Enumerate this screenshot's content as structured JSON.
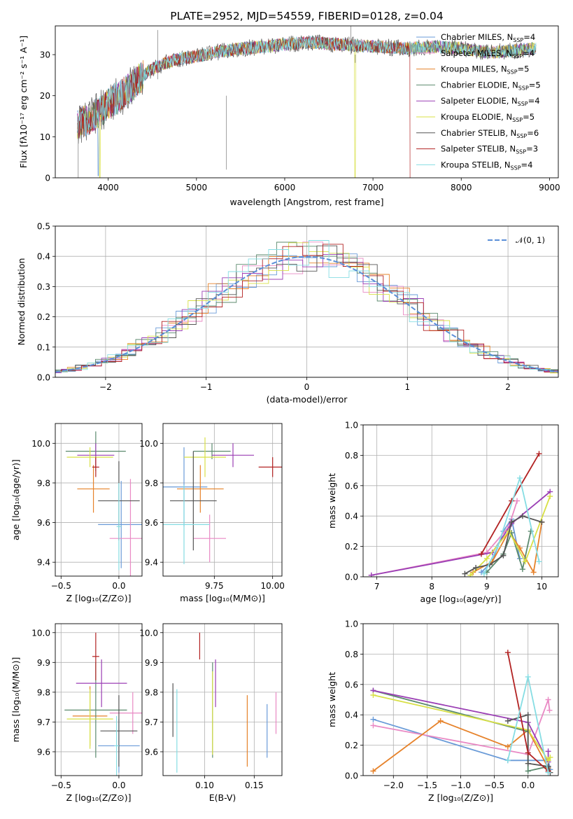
{
  "chart_data": [
    {
      "id": "spectrum",
      "type": "line",
      "title": "PLATE=2952, MJD=54559, FIBERID=0128, z=0.04",
      "xlabel": "wavelength [Angstrom, rest frame]",
      "ylabel": "Flux [fλ10⁻¹⁷ erg cm⁻² s⁻¹ A⁻¹]",
      "xlim": [
        3400,
        9100
      ],
      "ylim": [
        0,
        37
      ],
      "xticks": [
        "4000",
        "5000",
        "6000",
        "7000",
        "8000",
        "9000"
      ],
      "yticks": [
        "0",
        "10",
        "20",
        "30"
      ],
      "continuum": {
        "x": [
          3650,
          3700,
          3800,
          3900,
          4000,
          4100,
          4200,
          4300,
          4400,
          4500,
          4600,
          4800,
          5000,
          5200,
          5500,
          5800,
          6000,
          6300,
          6600,
          7000,
          7400,
          7700,
          8000,
          8300,
          8600,
          8850
        ],
        "y": [
          13,
          13.5,
          14.5,
          16,
          18,
          19.5,
          21,
          23,
          25,
          26.5,
          27.5,
          29,
          29.5,
          30.5,
          31.5,
          32,
          32.5,
          33,
          32.5,
          32,
          31.5,
          32,
          31.5,
          30.5,
          31,
          31.5
        ]
      },
      "legend": [
        {
          "name": "Chabrier MILES, N",
          "sub": "SSP",
          "tail": "=4",
          "color": "#6a9bd8"
        },
        {
          "name": "Salpeter MILES, N",
          "sub": "SSP",
          "tail": "=4",
          "color": "#e989c4"
        },
        {
          "name": "Kroupa MILES, N",
          "sub": "SSP",
          "tail": "=5",
          "color": "#e6822a"
        },
        {
          "name": "Chabrier ELODIE, N",
          "sub": "SSP",
          "tail": "=5",
          "color": "#5b8a6e"
        },
        {
          "name": "Salpeter ELODIE, N",
          "sub": "SSP",
          "tail": "=4",
          "color": "#9b3fb5"
        },
        {
          "name": "Kroupa ELODIE, N",
          "sub": "SSP",
          "tail": "=5",
          "color": "#d8e046"
        },
        {
          "name": "Chabrier STELIB, N",
          "sub": "SSP",
          "tail": "=6",
          "color": "#555555"
        },
        {
          "name": "Salpeter STELIB, N",
          "sub": "SSP",
          "tail": "=3",
          "color": "#b22222"
        },
        {
          "name": "Kroupa STELIB, N",
          "sub": "SSP",
          "tail": "=4",
          "color": "#86dde3"
        }
      ]
    },
    {
      "id": "residuals",
      "type": "line",
      "xlabel": "(data-model)/error",
      "ylabel": "Normed distribution",
      "xlim": [
        -2.5,
        2.5
      ],
      "ylim": [
        0,
        0.5
      ],
      "xticks": [
        "−2",
        "−1",
        "0",
        "1",
        "2"
      ],
      "yticks": [
        "0.0",
        "0.1",
        "0.2",
        "0.3",
        "0.4",
        "0.5"
      ],
      "legend": {
        "label": "𝒩(0, 1)",
        "color": "#5b8fd8"
      },
      "reference_curve": "gaussian mean 0 sigma 1"
    },
    {
      "id": "age-vs-Z",
      "type": "scatter",
      "xlabel": "Z [log₁₀(Z/Z⊙)]",
      "ylabel": "age  [log₁₀(age/yr)]",
      "xlim": [
        -0.55,
        0.2
      ],
      "ylim": [
        9.33,
        10.1
      ],
      "xticks": [
        "−0.5",
        "0.0"
      ],
      "yticks": [
        "9.4",
        "9.6",
        "9.8",
        "10.0"
      ],
      "points": [
        {
          "x": 0.02,
          "xerr": 0.2,
          "y": 9.59,
          "yerr": 0.22,
          "color": "#6a9bd8"
        },
        {
          "x": 0.1,
          "xerr": 0.18,
          "y": 9.52,
          "yerr": 0.3,
          "color": "#e989c4"
        },
        {
          "x": -0.22,
          "xerr": 0.14,
          "y": 9.77,
          "yerr": 0.12,
          "color": "#e6822a"
        },
        {
          "x": -0.2,
          "xerr": 0.26,
          "y": 9.96,
          "yerr": 0.1,
          "color": "#5b8a6e"
        },
        {
          "x": -0.2,
          "xerr": 0.16,
          "y": 9.94,
          "yerr": 0.06,
          "color": "#9b3fb5"
        },
        {
          "x": -0.25,
          "xerr": 0.2,
          "y": 9.93,
          "yerr": 0.05,
          "color": "#d8e046"
        },
        {
          "x": 0.0,
          "xerr": 0.18,
          "y": 9.71,
          "yerr": 0.2,
          "color": "#555555"
        },
        {
          "x": -0.2,
          "xerr": 0.03,
          "y": 9.88,
          "yerr": 0.05,
          "color": "#b22222"
        },
        {
          "x": 0.0,
          "xerr": 0.02,
          "y": 9.58,
          "yerr": 0.22,
          "color": "#86dde3"
        }
      ]
    },
    {
      "id": "age-vs-mass",
      "type": "scatter",
      "xlabel": "mass [log₁₀(M/M⊙)]",
      "ylabel": "",
      "xlim": [
        9.53,
        10.04
      ],
      "ylim": [
        9.33,
        10.1
      ],
      "xticks": [
        "9.75",
        "10.00"
      ],
      "yticks": [
        "9.4",
        "9.6",
        "9.8",
        "10.0"
      ],
      "points": [
        {
          "x": 9.62,
          "xerr": 0.1,
          "y": 9.78,
          "yerr": 0.2,
          "color": "#6a9bd8"
        },
        {
          "x": 9.73,
          "xerr": 0.07,
          "y": 9.52,
          "yerr": 0.12,
          "color": "#e989c4"
        },
        {
          "x": 9.69,
          "xerr": 0.1,
          "y": 9.77,
          "yerr": 0.12,
          "color": "#e6822a"
        },
        {
          "x": 9.74,
          "xerr": 0.08,
          "y": 9.96,
          "yerr": 0.04,
          "color": "#5b8a6e"
        },
        {
          "x": 9.83,
          "xerr": 0.09,
          "y": 9.94,
          "yerr": 0.06,
          "color": "#9b3fb5"
        },
        {
          "x": 9.71,
          "xerr": 0.09,
          "y": 9.93,
          "yerr": 0.1,
          "color": "#d8e046"
        },
        {
          "x": 9.66,
          "xerr": 0.1,
          "y": 9.71,
          "yerr": 0.25,
          "color": "#555555"
        },
        {
          "x": 10.0,
          "xerr": 0.06,
          "y": 9.88,
          "yerr": 0.05,
          "color": "#b22222"
        },
        {
          "x": 9.62,
          "xerr": 0.11,
          "y": 9.59,
          "yerr": 0.2,
          "color": "#86dde3"
        }
      ]
    },
    {
      "id": "weight-vs-age",
      "type": "line",
      "xlabel": "age  [log₁₀(age/yr)]",
      "ylabel": "mass weight",
      "xlim": [
        6.75,
        10.3
      ],
      "ylim": [
        0,
        1
      ],
      "xticks": [
        "7",
        "8",
        "9",
        "10"
      ],
      "yticks": [
        "0.0",
        "0.2",
        "0.4",
        "0.6",
        "0.8",
        "1.0"
      ],
      "series": [
        {
          "color": "#6a9bd8",
          "x": [
            8.9,
            9.1,
            9.3,
            9.45,
            9.6
          ],
          "y": [
            0.03,
            0.1,
            0.3,
            0.38,
            0.12
          ]
        },
        {
          "color": "#e989c4",
          "x": [
            6.9,
            9.0,
            9.4,
            9.55
          ],
          "y": [
            0.01,
            0.16,
            0.33,
            0.5
          ]
        },
        {
          "color": "#e6822a",
          "x": [
            8.75,
            9.1,
            9.4,
            9.6,
            9.85,
            10.0
          ],
          "y": [
            0.03,
            0.1,
            0.3,
            0.19,
            0.03,
            0.36
          ]
        },
        {
          "color": "#5b8a6e",
          "x": [
            9.0,
            9.3,
            9.45,
            9.65,
            9.8
          ],
          "y": [
            0.03,
            0.15,
            0.29,
            0.05,
            0.3
          ]
        },
        {
          "color": "#9b3fb5",
          "x": [
            6.9,
            9.1,
            9.45,
            10.15
          ],
          "y": [
            0.01,
            0.16,
            0.35,
            0.56
          ]
        },
        {
          "color": "#d8e046",
          "x": [
            8.7,
            9.0,
            9.4,
            9.7,
            10.15
          ],
          "y": [
            0.01,
            0.12,
            0.3,
            0.1,
            0.53
          ]
        },
        {
          "color": "#555555",
          "x": [
            8.6,
            8.8,
            9.05,
            9.3,
            9.45,
            9.65,
            10.0
          ],
          "y": [
            0.02,
            0.06,
            0.08,
            0.14,
            0.36,
            0.4,
            0.36
          ]
        },
        {
          "color": "#b22222",
          "x": [
            8.9,
            9.45,
            9.95
          ],
          "y": [
            0.15,
            0.5,
            0.81
          ]
        },
        {
          "color": "#86dde3",
          "x": [
            8.95,
            9.2,
            9.6,
            9.95
          ],
          "y": [
            0.02,
            0.2,
            0.65,
            0.1
          ]
        }
      ]
    },
    {
      "id": "mass-vs-Z",
      "type": "scatter",
      "xlabel": "Z [log₁₀(Z/Z⊙)]",
      "ylabel": "mass [log₁₀(M/M⊙)]",
      "xlim": [
        -0.55,
        0.2
      ],
      "ylim": [
        9.52,
        10.03
      ],
      "xticks": [
        "−0.5",
        "0.0"
      ],
      "yticks": [
        "9.6",
        "9.7",
        "9.8",
        "9.9",
        "10.0"
      ],
      "points": [
        {
          "x": 0.0,
          "xerr": 0.18,
          "y": 9.62,
          "yerr": 0.09,
          "color": "#6a9bd8"
        },
        {
          "x": 0.12,
          "xerr": 0.2,
          "y": 9.73,
          "yerr": 0.07,
          "color": "#e989c4"
        },
        {
          "x": -0.25,
          "xerr": 0.15,
          "y": 9.72,
          "yerr": 0.1,
          "color": "#e6822a"
        },
        {
          "x": -0.2,
          "xerr": 0.27,
          "y": 9.74,
          "yerr": 0.16,
          "color": "#5b8a6e"
        },
        {
          "x": -0.15,
          "xerr": 0.22,
          "y": 9.83,
          "yerr": 0.08,
          "color": "#9b3fb5"
        },
        {
          "x": -0.25,
          "xerr": 0.2,
          "y": 9.71,
          "yerr": 0.1,
          "color": "#d8e046"
        },
        {
          "x": 0.0,
          "xerr": 0.16,
          "y": 9.67,
          "yerr": 0.12,
          "color": "#555555"
        },
        {
          "x": -0.2,
          "xerr": 0.03,
          "y": 9.92,
          "yerr": 0.08,
          "color": "#b22222"
        },
        {
          "x": -0.02,
          "xerr": 0.02,
          "y": 9.62,
          "yerr": 0.1,
          "color": "#86dde3"
        }
      ]
    },
    {
      "id": "mass-vs-ebv",
      "type": "scatter",
      "xlabel": "E(B-V)",
      "ylabel": "",
      "xlim": [
        0.058,
        0.178
      ],
      "ylim": [
        9.52,
        10.03
      ],
      "xticks": [
        "0.10",
        "0.15"
      ],
      "yticks": [
        "9.6",
        "9.7",
        "9.8",
        "9.9",
        "10.0"
      ],
      "points": [
        {
          "x": 0.163,
          "y": 9.67,
          "yerr": 0.09,
          "color": "#6a9bd8"
        },
        {
          "x": 0.172,
          "y": 9.73,
          "yerr": 0.07,
          "color": "#e989c4"
        },
        {
          "x": 0.143,
          "y": 9.67,
          "yerr": 0.12,
          "color": "#e6822a"
        },
        {
          "x": 0.108,
          "y": 9.74,
          "yerr": 0.16,
          "color": "#5b8a6e"
        },
        {
          "x": 0.111,
          "y": 9.83,
          "yerr": 0.08,
          "color": "#9b3fb5"
        },
        {
          "x": 0.108,
          "y": 9.73,
          "yerr": 0.14,
          "color": "#d8e046"
        },
        {
          "x": 0.068,
          "y": 9.74,
          "yerr": 0.09,
          "color": "#555555"
        },
        {
          "x": 0.095,
          "y": 9.955,
          "yerr": 0.045,
          "color": "#b22222"
        },
        {
          "x": 0.072,
          "y": 9.67,
          "yerr": 0.14,
          "color": "#86dde3"
        }
      ]
    },
    {
      "id": "weight-vs-Z",
      "type": "line",
      "xlabel": "Z [log₁₀(Z/Z⊙)]",
      "ylabel": "mass weight",
      "xlim": [
        -2.45,
        0.45
      ],
      "ylim": [
        0,
        1
      ],
      "xticks": [
        "−2.0",
        "−1.5",
        "−1.0",
        "−0.5",
        "0.0"
      ],
      "yticks": [
        "0.0",
        "0.2",
        "0.4",
        "0.6",
        "0.8",
        "1.0"
      ],
      "series": [
        {
          "color": "#6a9bd8",
          "x": [
            -2.3,
            -0.3,
            0.0,
            0.3,
            0.33
          ],
          "y": [
            0.37,
            0.1,
            0.1,
            0.1,
            0.04
          ]
        },
        {
          "color": "#e989c4",
          "x": [
            -2.3,
            0.0,
            0.3,
            0.32
          ],
          "y": [
            0.33,
            0.14,
            0.5,
            0.43
          ]
        },
        {
          "color": "#e6822a",
          "x": [
            -2.3,
            -1.3,
            -0.3,
            0.0,
            0.3
          ],
          "y": [
            0.03,
            0.36,
            0.19,
            0.3,
            0.05
          ]
        },
        {
          "color": "#5b8a6e",
          "x": [
            -2.3,
            0.0,
            0.0,
            0.3
          ],
          "y": [
            0.56,
            0.29,
            0.03,
            0.06
          ]
        },
        {
          "color": "#9b3fb5",
          "x": [
            -2.3,
            0.0,
            0.3,
            0.3
          ],
          "y": [
            0.56,
            0.35,
            0.09,
            0.16
          ]
        },
        {
          "color": "#d8e046",
          "x": [
            -2.3,
            0.0,
            0.3,
            0.33
          ],
          "y": [
            0.53,
            0.3,
            0.1,
            0.12
          ]
        },
        {
          "color": "#555555",
          "x": [
            -0.3,
            0.0,
            0.0,
            0.3,
            0.33
          ],
          "y": [
            0.36,
            0.4,
            0.08,
            0.06,
            0.02
          ]
        },
        {
          "color": "#b22222",
          "x": [
            -0.3,
            0.0,
            0.3
          ],
          "y": [
            0.81,
            0.15,
            0.03
          ]
        },
        {
          "color": "#86dde3",
          "x": [
            -0.3,
            0.0,
            0.3
          ],
          "y": [
            0.1,
            0.65,
            0.02
          ]
        }
      ]
    }
  ]
}
